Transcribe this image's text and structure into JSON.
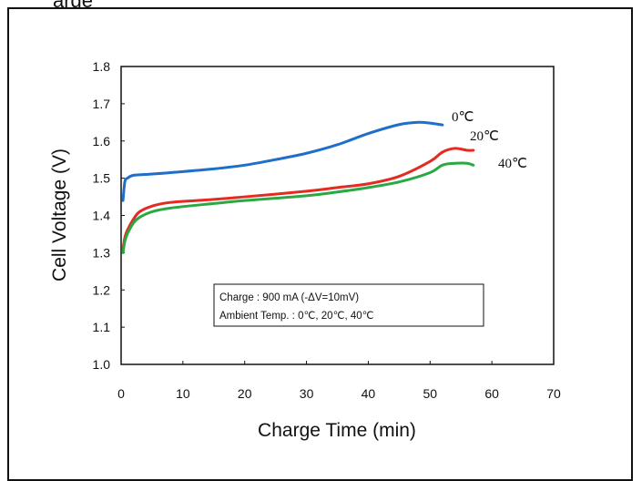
{
  "page": {
    "title_fragment": "arge"
  },
  "chart_data": {
    "type": "line",
    "title": "",
    "xlabel": "Charge Time (min)",
    "ylabel": "Cell Voltage (V)",
    "xlim": [
      0,
      70
    ],
    "ylim": [
      1.0,
      1.8
    ],
    "xticks": [
      0,
      10,
      20,
      30,
      40,
      50,
      60,
      70
    ],
    "yticks": [
      1.0,
      1.1,
      1.2,
      1.3,
      1.4,
      1.5,
      1.6,
      1.7,
      1.8
    ],
    "xtick_labels": [
      "0",
      "10",
      "20",
      "30",
      "40",
      "50",
      "60",
      "70"
    ],
    "ytick_labels": [
      "1.0",
      "1.1",
      "1.2",
      "1.3",
      "1.4",
      "1.5",
      "1.6",
      "1.7",
      "1.8"
    ],
    "grid": false,
    "legend": "none",
    "series": [
      {
        "name": "0℃",
        "color": "#1f6fc9",
        "x": [
          0.3,
          0.6,
          1,
          2,
          4,
          8,
          15,
          20,
          25,
          30,
          35,
          40,
          45,
          48,
          50,
          52
        ],
        "y": [
          1.44,
          1.49,
          1.5,
          1.508,
          1.51,
          1.515,
          1.525,
          1.535,
          1.55,
          1.567,
          1.59,
          1.62,
          1.644,
          1.65,
          1.648,
          1.643
        ]
      },
      {
        "name": "20℃",
        "color": "#e32b22",
        "x": [
          0.3,
          0.6,
          1,
          2,
          3,
          5,
          8,
          15,
          20,
          30,
          35,
          40,
          45,
          50,
          52,
          54,
          56,
          57
        ],
        "y": [
          1.31,
          1.34,
          1.36,
          1.39,
          1.41,
          1.425,
          1.435,
          1.443,
          1.45,
          1.465,
          1.475,
          1.485,
          1.505,
          1.545,
          1.57,
          1.58,
          1.575,
          1.575
        ]
      },
      {
        "name": "40℃",
        "color": "#2aa943",
        "x": [
          0.3,
          0.6,
          1,
          2,
          3,
          5,
          8,
          15,
          20,
          30,
          35,
          40,
          45,
          50,
          52,
          54,
          56,
          57
        ],
        "y": [
          1.3,
          1.33,
          1.35,
          1.38,
          1.395,
          1.41,
          1.42,
          1.432,
          1.44,
          1.453,
          1.463,
          1.475,
          1.49,
          1.515,
          1.535,
          1.54,
          1.54,
          1.535
        ]
      }
    ],
    "annotations": {
      "line1": "Charge : 900 mA (-ΔV=10mV)",
      "line2": "Ambient Temp. : 0℃, 20℃, 40℃"
    }
  }
}
